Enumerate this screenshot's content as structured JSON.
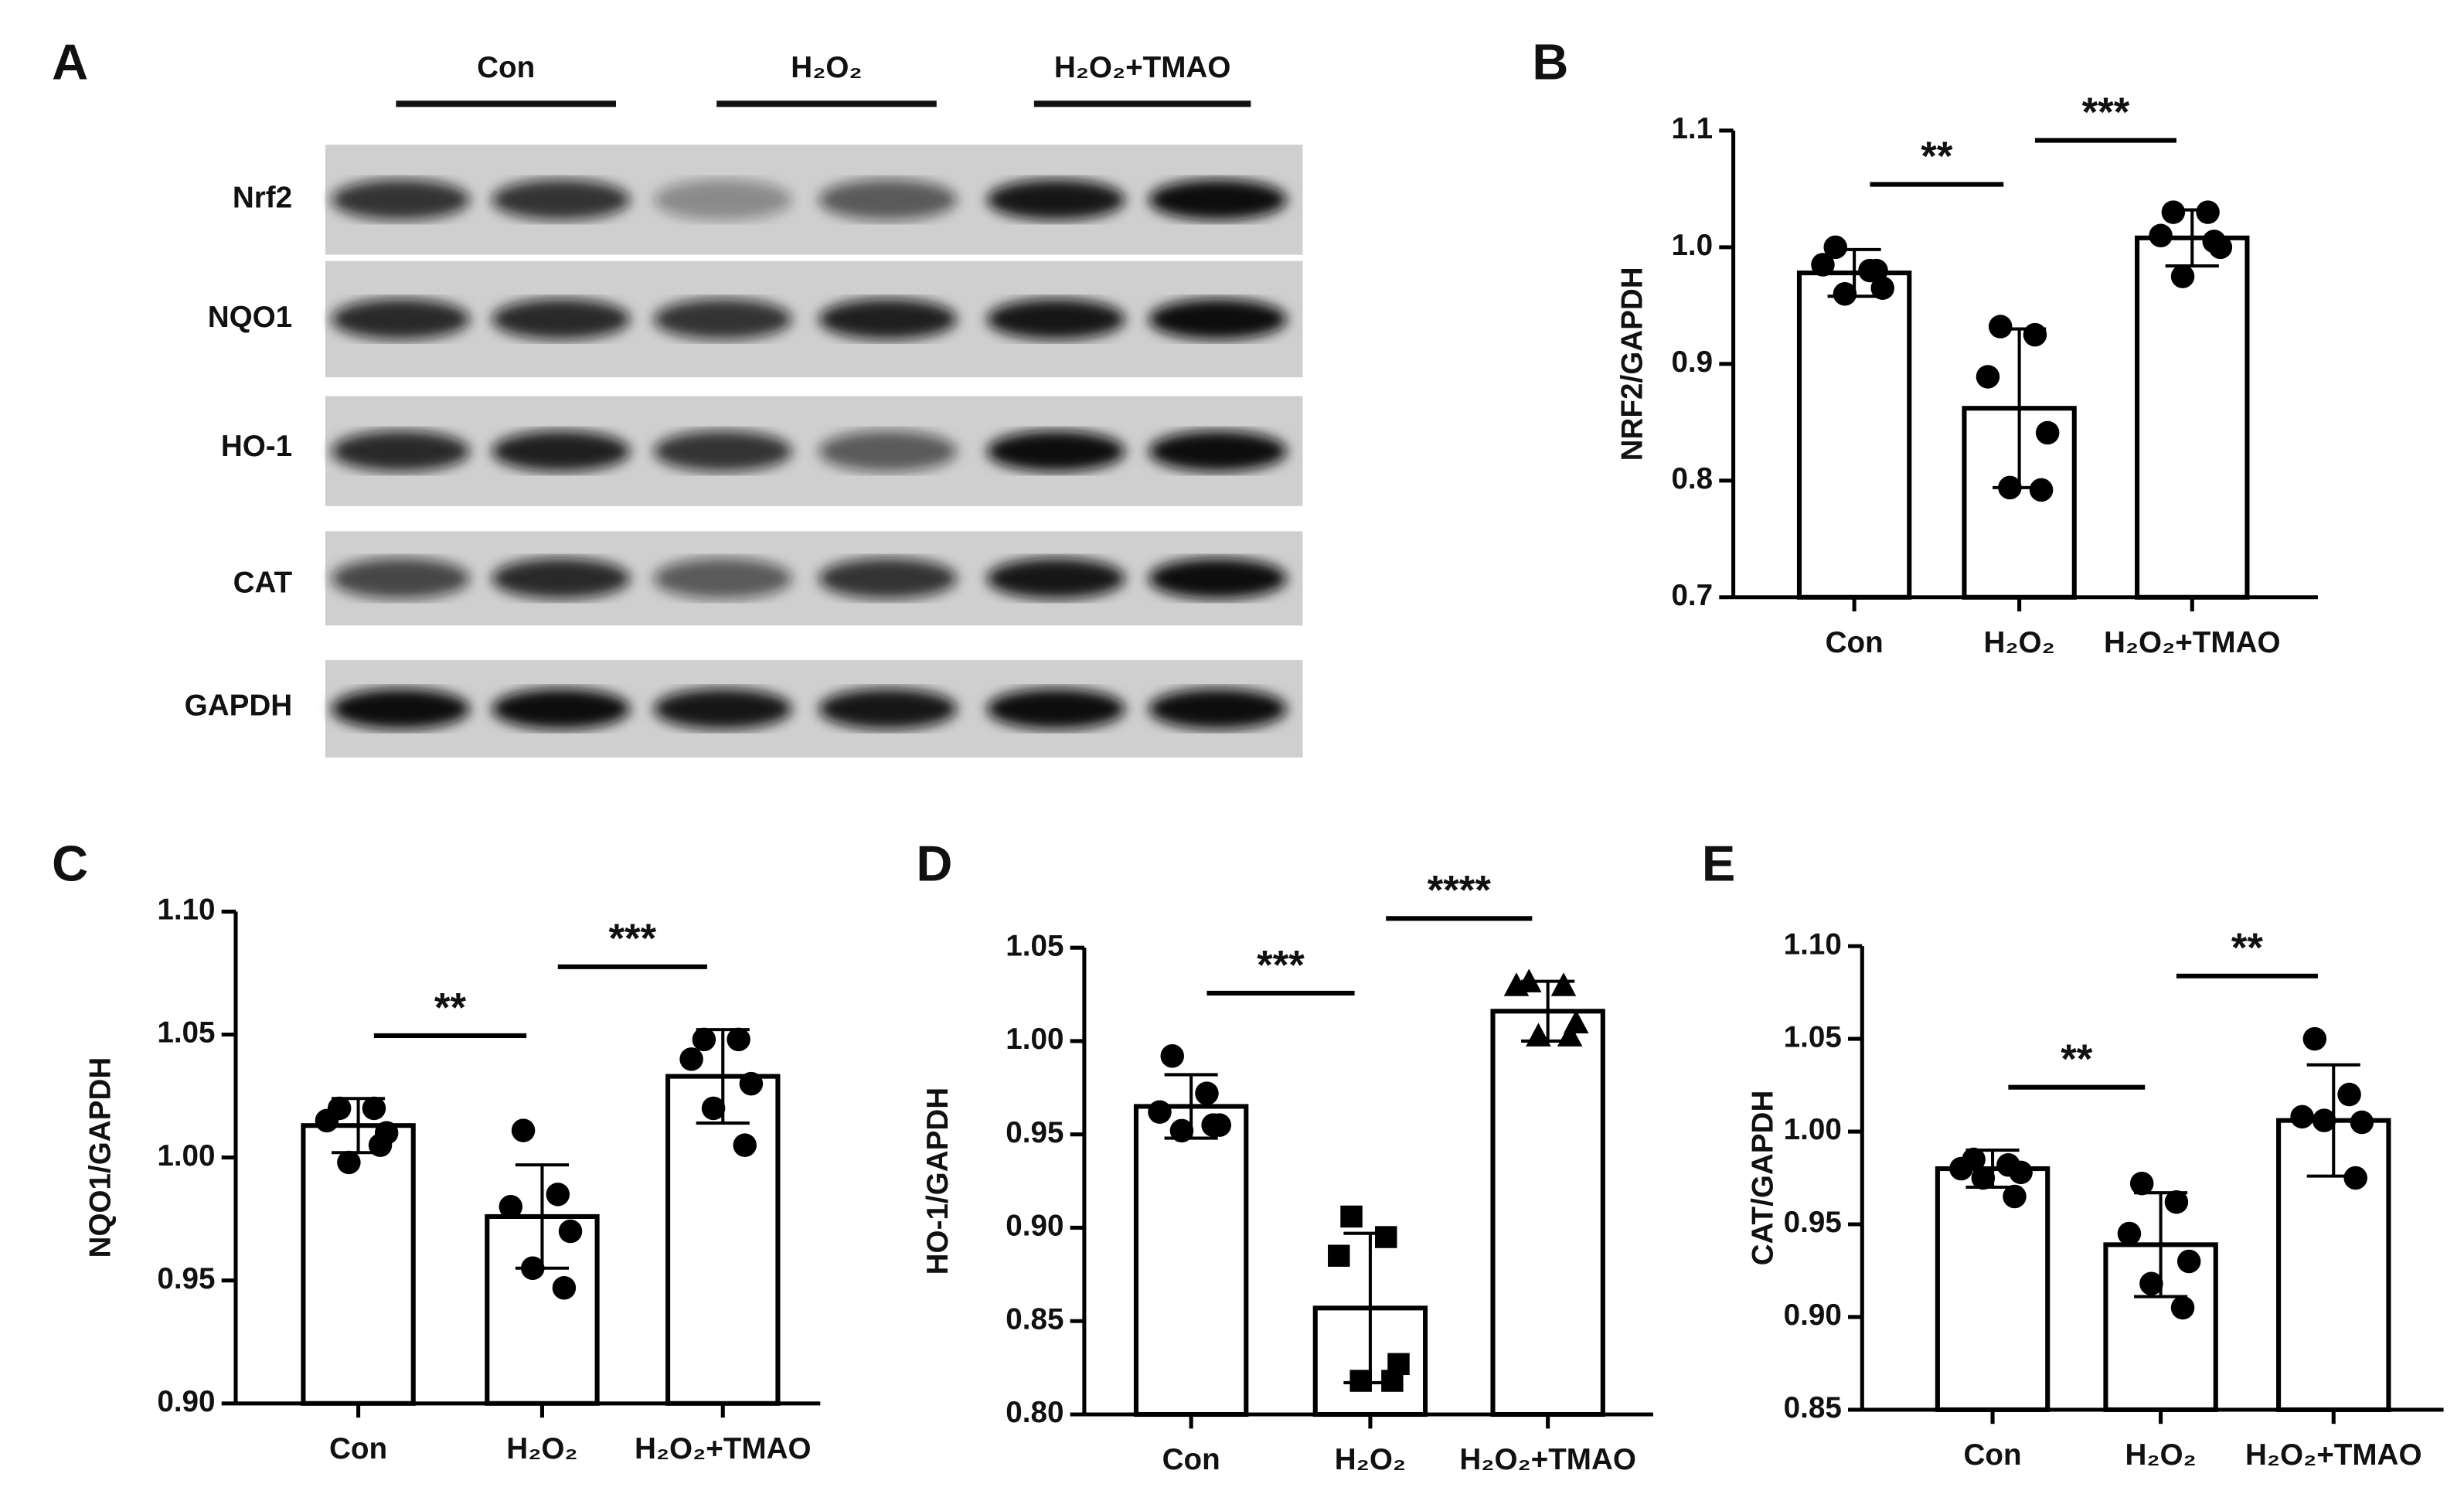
{
  "blot": {
    "panel_label": "A",
    "groups": [
      "Con",
      "H₂O₂",
      "H₂O₂+TMAO"
    ],
    "rows": [
      "Nrf2",
      "NQO1",
      "HO-1",
      "CAT",
      "GAPDH"
    ]
  },
  "chart_data": [
    {
      "type": "bar",
      "panel_label": "B",
      "ylabel": "NRF2/GAPDH",
      "categories": [
        "Con",
        "H₂O₂",
        "H₂O₂+TMAO"
      ],
      "values": [
        0.978,
        0.862,
        1.008
      ],
      "errors": [
        0.02,
        0.068,
        0.024
      ],
      "points": [
        [
          1.0,
          0.98,
          0.985,
          0.965,
          0.96,
          0.98
        ],
        [
          0.932,
          0.925,
          0.889,
          0.841,
          0.794,
          0.792
        ],
        [
          1.03,
          1.03,
          1.01,
          1.0,
          0.975,
          1.005
        ]
      ],
      "markers": [
        "circle",
        "circle",
        "circle"
      ],
      "color": "#000000",
      "bar_fill": "#ffffff",
      "ylim": [
        0.7,
        1.1
      ],
      "yticks": [
        0.7,
        0.8,
        0.9,
        {
          "value": 1,
          "label": "1.0"
        },
        1.1
      ],
      "significance": [
        {
          "groups": [
            "Con",
            "H₂O₂"
          ],
          "label": "**"
        },
        {
          "groups": [
            "H₂O₂",
            "H₂O₂+TMAO"
          ],
          "label": "***"
        }
      ]
    },
    {
      "type": "bar",
      "panel_label": "C",
      "ylabel": "NQO1/GAPDH",
      "categories": [
        "Con",
        "H₂O₂",
        "H₂O₂+TMAO"
      ],
      "values": [
        1.013,
        0.976,
        1.033
      ],
      "errors": [
        0.011,
        0.021,
        0.019
      ],
      "points": [
        [
          1.02,
          1.02,
          1.015,
          1.01,
          0.998,
          1.005
        ],
        [
          1.011,
          0.985,
          0.98,
          0.97,
          0.955,
          0.947
        ],
        [
          1.048,
          1.048,
          1.04,
          1.03,
          1.02,
          1.005
        ]
      ],
      "markers": [
        "circle",
        "circle",
        "circle"
      ],
      "color": "#000000",
      "bar_fill": "#ffffff",
      "ylim": [
        0.9,
        1.1
      ],
      "yticks": [
        {
          "value": 0.9,
          "label": "0.90"
        },
        0.95,
        {
          "value": 1,
          "label": "1.00"
        },
        1.05,
        {
          "value": 1.1,
          "label": "1.10"
        }
      ],
      "significance": [
        {
          "groups": [
            "Con",
            "H₂O₂"
          ],
          "label": "**"
        },
        {
          "groups": [
            "H₂O₂",
            "H₂O₂+TMAO"
          ],
          "label": "***"
        }
      ]
    },
    {
      "type": "bar",
      "panel_label": "D",
      "ylabel": "HO-1/GAPDH",
      "categories": [
        "Con",
        "H₂O₂",
        "H₂O₂+TMAO"
      ],
      "values": [
        0.965,
        0.857,
        1.016
      ],
      "errors": [
        0.017,
        0.04,
        0.016
      ],
      "points": [
        [
          0.992,
          0.972,
          0.962,
          0.955,
          0.952,
          0.955
        ],
        [
          0.906,
          0.895,
          0.885,
          0.827,
          0.818,
          0.818
        ],
        [
          1.032,
          1.03,
          1.03,
          1.01,
          1.003,
          1.003
        ]
      ],
      "markers": [
        "circle",
        "square",
        "triangle"
      ],
      "color": "#000000",
      "bar_fill": "#ffffff",
      "ylim": [
        0.8,
        1.05
      ],
      "yticks": [
        {
          "value": 0.8,
          "label": "0.80"
        },
        0.85,
        {
          "value": 0.9,
          "label": "0.90"
        },
        0.95,
        {
          "value": 1,
          "label": "1.00"
        },
        1.05
      ],
      "significance": [
        {
          "groups": [
            "Con",
            "H₂O₂"
          ],
          "label": "***"
        },
        {
          "groups": [
            "H₂O₂",
            "H₂O₂+TMAO"
          ],
          "label": "****"
        }
      ]
    },
    {
      "type": "bar",
      "panel_label": "E",
      "ylabel": "CAT/GAPDH",
      "categories": [
        "Con",
        "H₂O₂",
        "H₂O₂+TMAO"
      ],
      "values": [
        0.98,
        0.939,
        1.006
      ],
      "errors": [
        0.01,
        0.028,
        0.03
      ],
      "points": [
        [
          0.985,
          0.982,
          0.98,
          0.978,
          0.975,
          0.965
        ],
        [
          0.972,
          0.962,
          0.945,
          0.93,
          0.918,
          0.905
        ],
        [
          1.05,
          1.02,
          1.008,
          1.005,
          1.006,
          0.975
        ]
      ],
      "markers": [
        "circle",
        "circle",
        "circle"
      ],
      "color": "#000000",
      "bar_fill": "#ffffff",
      "ylim": [
        0.85,
        1.1
      ],
      "yticks": [
        0.85,
        {
          "value": 0.9,
          "label": "0.90"
        },
        0.95,
        {
          "value": 1,
          "label": "1.00"
        },
        1.05,
        {
          "value": 1.1,
          "label": "1.10"
        }
      ],
      "significance": [
        {
          "groups": [
            "Con",
            "H₂O₂"
          ],
          "label": "**"
        },
        {
          "groups": [
            "H₂O₂",
            "H₂O₂+TMAO"
          ],
          "label": "**"
        }
      ]
    }
  ]
}
